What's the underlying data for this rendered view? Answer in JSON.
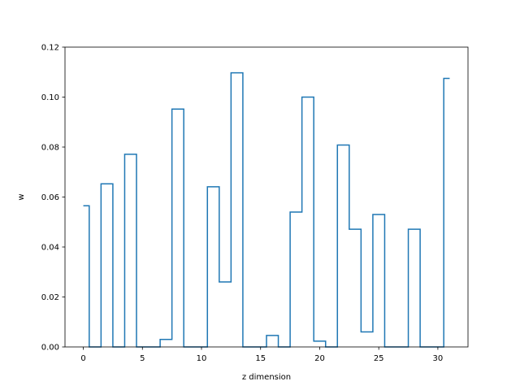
{
  "chart_data": {
    "type": "line",
    "drawstyle": "steps-mid",
    "title": "",
    "xlabel": "z dimension",
    "ylabel": "w",
    "xlim": [
      -1.55,
      32.55
    ],
    "ylim": [
      0.0,
      0.12
    ],
    "xticks": [
      0,
      5,
      10,
      15,
      20,
      25,
      30
    ],
    "yticks": [
      0.0,
      0.02,
      0.04,
      0.06,
      0.08,
      0.1,
      0.12
    ],
    "ytick_labels": [
      "0.00",
      "0.02",
      "0.04",
      "0.06",
      "0.08",
      "0.10",
      "0.12"
    ],
    "grid": false,
    "color": "#1f77b4",
    "series": [
      {
        "x": [
          0,
          1,
          2,
          3,
          4,
          5,
          6,
          7,
          8,
          9,
          10,
          11,
          12,
          13,
          14,
          15,
          16,
          17,
          18,
          19,
          20,
          21,
          22,
          23,
          24,
          25,
          26,
          27,
          28,
          29,
          30,
          31
        ],
        "y": [
          0.0565,
          0.0,
          0.0653,
          0.0,
          0.0771,
          0.0,
          0.0,
          0.003,
          0.0952,
          0.0,
          0.0,
          0.0641,
          0.026,
          0.1097,
          0.0,
          0.0,
          0.0046,
          0.0,
          0.054,
          0.1,
          0.0023,
          0.0,
          0.0808,
          0.0471,
          0.006,
          0.053,
          0.0,
          0.0,
          0.0471,
          0.0,
          0.0,
          0.1075
        ]
      }
    ]
  }
}
